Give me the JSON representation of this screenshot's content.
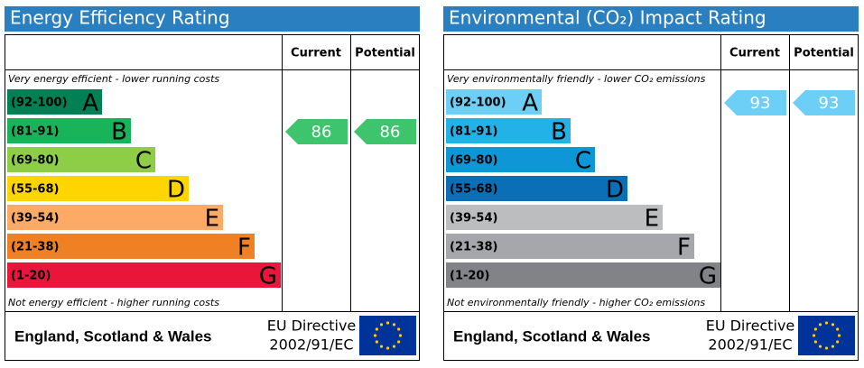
{
  "panels": [
    {
      "title": "Energy Efficiency Rating",
      "title_color": "#2a7fc1",
      "columns": [
        "Current",
        "Potential"
      ],
      "top_note": "Very energy efficient - lower running costs",
      "bottom_note": "Not energy efficient - higher running costs",
      "bands": [
        {
          "range": "(92-100)",
          "letter": "A",
          "color": "#008054"
        },
        {
          "range": "(81-91)",
          "letter": "B",
          "color": "#19b459"
        },
        {
          "range": "(69-80)",
          "letter": "C",
          "color": "#8dce46"
        },
        {
          "range": "(55-68)",
          "letter": "D",
          "color": "#ffd500"
        },
        {
          "range": "(39-54)",
          "letter": "E",
          "color": "#fcaa65"
        },
        {
          "range": "(21-38)",
          "letter": "F",
          "color": "#ef8023"
        },
        {
          "range": "(1-20)",
          "letter": "G",
          "color": "#e9153b"
        }
      ],
      "current": 86,
      "potential": 86,
      "arrow_color": "#3ec46d",
      "footer": {
        "region": "England, Scotland & Wales",
        "directive": [
          "EU Directive",
          "2002/91/EC"
        ]
      }
    },
    {
      "title": "Environmental (CO₂) Impact Rating",
      "title_color": "#2a7fc1",
      "columns": [
        "Current",
        "Potential"
      ],
      "top_note": "Very environmentally friendly - lower CO₂ emissions",
      "bottom_note": "Not environmentally friendly - higher CO₂ emissions",
      "bands": [
        {
          "range": "(92-100)",
          "letter": "A",
          "color": "#6dcff6"
        },
        {
          "range": "(81-91)",
          "letter": "B",
          "color": "#22b2e8"
        },
        {
          "range": "(69-80)",
          "letter": "C",
          "color": "#0f96d6"
        },
        {
          "range": "(55-68)",
          "letter": "D",
          "color": "#0a6fb6"
        },
        {
          "range": "(39-54)",
          "letter": "E",
          "color": "#bbbdbf"
        },
        {
          "range": "(21-38)",
          "letter": "F",
          "color": "#a5a7aa"
        },
        {
          "range": "(1-20)",
          "letter": "G",
          "color": "#818386"
        }
      ],
      "current": 93,
      "potential": 93,
      "arrow_color": "#6dcff6",
      "footer": {
        "region": "England, Scotland & Wales",
        "directive": [
          "EU Directive",
          "2002/91/EC"
        ]
      }
    }
  ]
}
